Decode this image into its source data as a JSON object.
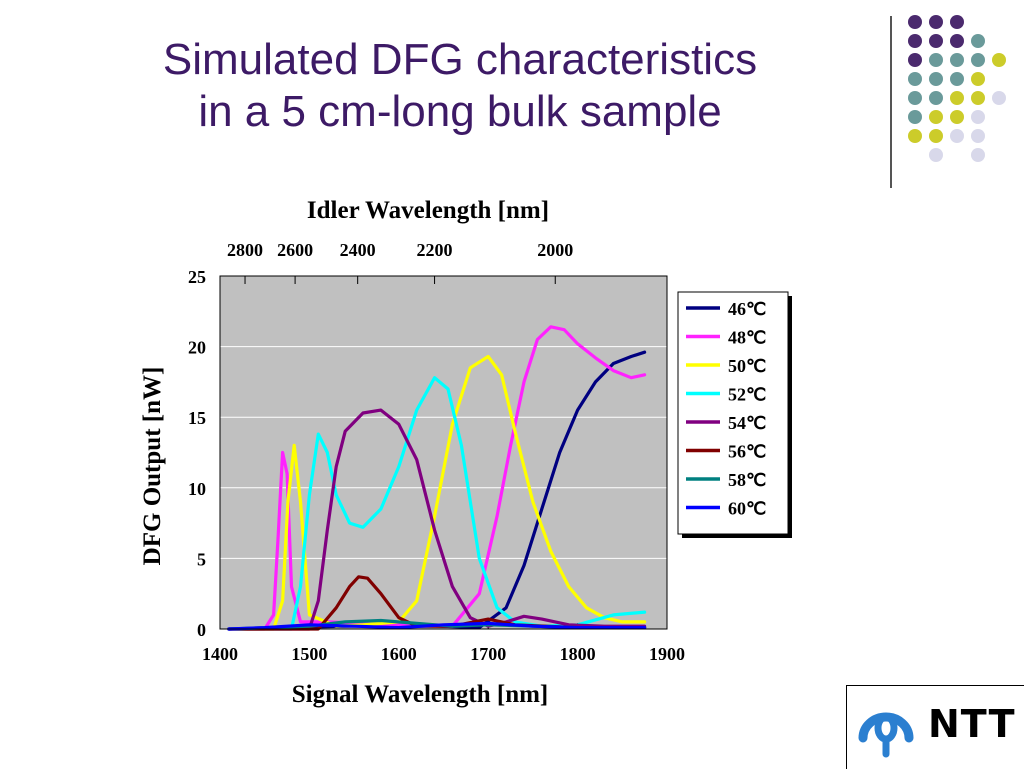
{
  "slide": {
    "title_line1": "Simulated DFG characteristics",
    "title_line2": "in a 5 cm-long bulk sample"
  },
  "decor": {
    "dot_colors": {
      "purple": "#4b2a6e",
      "teal": "#6a9a9a",
      "yellow": "#cccc2a",
      "lavender": "#d8d8ea"
    }
  },
  "logo": {
    "text": "NTT",
    "icon": "ntt-logo-icon",
    "color": "#2b7fd0"
  },
  "chart_data": {
    "type": "line",
    "title": "",
    "xlabel": "Signal Wavelength [nm]",
    "ylabel": "DFG Output [nW]",
    "top_xlabel": "Idler Wavelength [nm]",
    "xlim": [
      1400,
      1900
    ],
    "ylim": [
      0,
      25
    ],
    "x_ticks": [
      "1400",
      "1500",
      "1600",
      "1700",
      "1800",
      "1900"
    ],
    "y_ticks": [
      "0",
      "5",
      "10",
      "15",
      "20",
      "25"
    ],
    "top_ticks": [
      "2800",
      "2600",
      "2400",
      "2200",
      "2000"
    ],
    "top_tick_positions": [
      1428,
      1484,
      1554,
      1640,
      1775
    ],
    "grid": true,
    "plot_background": "#c0c0c0",
    "legend_position": "right",
    "series": [
      {
        "name": "46℃",
        "color": "#000080",
        "x": [
          1410,
          1540,
          1610,
          1690,
          1720,
          1740,
          1760,
          1780,
          1800,
          1820,
          1840,
          1860,
          1875
        ],
        "y": [
          0,
          0.2,
          0.3,
          0.1,
          1.5,
          4.5,
          8.5,
          12.5,
          15.5,
          17.5,
          18.8,
          19.3,
          19.6
        ]
      },
      {
        "name": "48℃",
        "color": "#ff22ff",
        "x": [
          1410,
          1450,
          1460,
          1465,
          1470,
          1475,
          1480,
          1490,
          1520,
          1600,
          1660,
          1690,
          1710,
          1725,
          1740,
          1755,
          1770,
          1785,
          1800,
          1820,
          1840,
          1860,
          1875
        ],
        "y": [
          0,
          0,
          1,
          6.5,
          12.5,
          11,
          3,
          0.5,
          0.5,
          0.3,
          0.2,
          2.5,
          8,
          13,
          17.5,
          20.5,
          21.4,
          21.2,
          20.2,
          19.2,
          18.3,
          17.8,
          18
        ]
      },
      {
        "name": "50℃",
        "color": "#ffff00",
        "x": [
          1410,
          1460,
          1470,
          1476,
          1483,
          1490,
          1500,
          1530,
          1560,
          1600,
          1620,
          1640,
          1660,
          1680,
          1700,
          1715,
          1730,
          1750,
          1770,
          1790,
          1810,
          1830,
          1850,
          1875
        ],
        "y": [
          0,
          0,
          2,
          9,
          13,
          9,
          1,
          0.2,
          0.3,
          0.5,
          2,
          8,
          14.5,
          18.5,
          19.3,
          18,
          14,
          9,
          5.5,
          3,
          1.5,
          0.8,
          0.5,
          0.5
        ]
      },
      {
        "name": "52℃",
        "color": "#00ffff",
        "x": [
          1410,
          1480,
          1490,
          1500,
          1510,
          1520,
          1530,
          1545,
          1560,
          1580,
          1600,
          1620,
          1640,
          1655,
          1670,
          1690,
          1710,
          1730,
          1760,
          1800,
          1840,
          1875
        ],
        "y": [
          0,
          0,
          3,
          9.5,
          13.8,
          12.5,
          9.5,
          7.5,
          7.2,
          8.5,
          11.5,
          15.5,
          17.8,
          17,
          13,
          5,
          1.5,
          0.5,
          0.2,
          0.3,
          1,
          1.2
        ]
      },
      {
        "name": "54℃",
        "color": "#800080",
        "x": [
          1410,
          1500,
          1510,
          1520,
          1530,
          1540,
          1560,
          1580,
          1600,
          1620,
          1640,
          1660,
          1680,
          1700,
          1720,
          1740,
          1760,
          1790,
          1830,
          1875
        ],
        "y": [
          0,
          0,
          2,
          7,
          11.5,
          14,
          15.3,
          15.5,
          14.5,
          12,
          7,
          3,
          0.8,
          0.2,
          0.5,
          0.9,
          0.7,
          0.3,
          0.2,
          0.2
        ]
      },
      {
        "name": "56℃",
        "color": "#800000",
        "x": [
          1410,
          1510,
          1530,
          1545,
          1555,
          1565,
          1580,
          1600,
          1620,
          1660,
          1700,
          1730,
          1800,
          1875
        ],
        "y": [
          0,
          0,
          1.5,
          3,
          3.7,
          3.6,
          2.5,
          0.8,
          0.2,
          0.2,
          0.7,
          0.3,
          0.1,
          0.1
        ]
      },
      {
        "name": "58℃",
        "color": "#008080",
        "x": [
          1410,
          1500,
          1540,
          1580,
          1620,
          1660,
          1700,
          1750,
          1800,
          1875
        ],
        "y": [
          0,
          0.2,
          0.5,
          0.6,
          0.4,
          0.2,
          0.3,
          0.2,
          0.1,
          0.1
        ]
      },
      {
        "name": "60℃",
        "color": "#0000ff",
        "x": [
          1410,
          1450,
          1500,
          1550,
          1600,
          1650,
          1700,
          1750,
          1800,
          1875
        ],
        "y": [
          0,
          0.1,
          0.3,
          0.2,
          0.1,
          0.3,
          0.4,
          0.2,
          0.1,
          0.1
        ]
      }
    ]
  }
}
